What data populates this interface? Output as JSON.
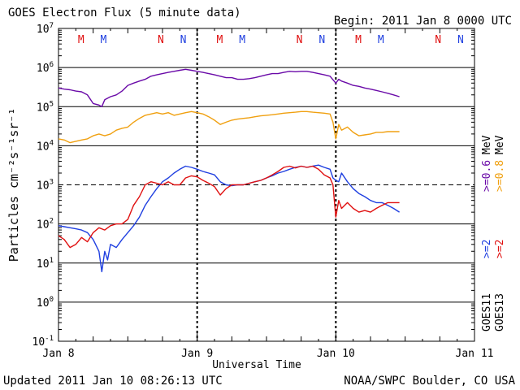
{
  "header": {
    "title": "GOES Electron Flux (5 minute data)",
    "begin": "Begin: 2011 Jan 8 0000 UTC"
  },
  "footer": {
    "updated": "Updated 2011 Jan 10 08:26:13 UTC",
    "credit": "NOAA/SWPC Boulder, CO USA"
  },
  "colors": {
    "goes11_2mev": "#1f3fe0",
    "goes13_2mev": "#e01010",
    "goes11_06mev": "#6a0aa8",
    "goes13_08mev": "#f0a010",
    "marker_m": "#e01010",
    "marker_n": "#1f3fe0"
  },
  "chart_data": {
    "type": "line",
    "title": "GOES Electron Flux (5 minute data)",
    "xlabel": "Universal Time",
    "ylabel": "Particles cm⁻²s⁻¹sr⁻¹",
    "y_scale": "log",
    "ylim": [
      0.1,
      10000000
    ],
    "y_ticks": [
      {
        "exp": -1
      },
      {
        "exp": 0
      },
      {
        "exp": 1
      },
      {
        "exp": 2
      },
      {
        "exp": 3
      },
      {
        "exp": 4
      },
      {
        "exp": 5
      },
      {
        "exp": 6
      },
      {
        "exp": 7
      }
    ],
    "xlim_hours": [
      0,
      72
    ],
    "x_ticks": [
      {
        "label": "Jan 8",
        "hour": 0
      },
      {
        "label": "Jan 9",
        "hour": 24
      },
      {
        "label": "Jan 10",
        "hour": 48
      },
      {
        "label": "Jan 11",
        "hour": 72
      }
    ],
    "dashed_day_lines_hours": [
      24,
      48
    ],
    "dashed_reference_level": 1000,
    "markers": [
      {
        "label": "M",
        "hour": 3.9,
        "color": "#e01010"
      },
      {
        "label": "M",
        "hour": 7.8,
        "color": "#1f3fe0"
      },
      {
        "label": "N",
        "hour": 17.7,
        "color": "#e01010"
      },
      {
        "label": "N",
        "hour": 21.6,
        "color": "#1f3fe0"
      },
      {
        "label": "M",
        "hour": 27.9,
        "color": "#e01010"
      },
      {
        "label": "M",
        "hour": 31.8,
        "color": "#1f3fe0"
      },
      {
        "label": "N",
        "hour": 41.7,
        "color": "#e01010"
      },
      {
        "label": "N",
        "hour": 45.6,
        "color": "#1f3fe0"
      },
      {
        "label": "M",
        "hour": 51.9,
        "color": "#e01010"
      },
      {
        "label": "M",
        "hour": 55.8,
        "color": "#1f3fe0"
      },
      {
        "label": "N",
        "hour": 65.7,
        "color": "#e01010"
      },
      {
        "label": "N",
        "hour": 69.6,
        "color": "#1f3fe0"
      }
    ],
    "legend": {
      "placement": "right",
      "energy_labels": [
        {
          "text": ">=2",
          "color": "#1f3fe0"
        },
        {
          "text": ">=2",
          "color": "#e01010"
        },
        {
          "text": ">=0.6",
          "color": "#6a0aa8"
        },
        {
          "text": ">=0.8",
          "color": "#f0a010"
        }
      ],
      "unit": "MeV",
      "satellites": [
        "GOES11",
        "GOES13"
      ]
    },
    "series": [
      {
        "name": "GOES11 >=2 MeV",
        "color": "#1f3fe0",
        "x": [
          0,
          1,
          2,
          3,
          4,
          5,
          6,
          7,
          7.5,
          8,
          8.5,
          9,
          10,
          11,
          12,
          13,
          14,
          15,
          16,
          17,
          18,
          19,
          20,
          21,
          22,
          23,
          24,
          25,
          26,
          27,
          28,
          29,
          30,
          31,
          32,
          33,
          34,
          35,
          36,
          37,
          38,
          39,
          40,
          41,
          42,
          43,
          44,
          45,
          46,
          47,
          47.5,
          48,
          48.5,
          49,
          50,
          51,
          52,
          53,
          54,
          55,
          56,
          57,
          58,
          59
        ],
        "y": [
          90,
          85,
          80,
          75,
          70,
          60,
          40,
          20,
          6,
          20,
          12,
          30,
          25,
          40,
          60,
          90,
          150,
          300,
          500,
          800,
          1200,
          1500,
          2000,
          2500,
          3000,
          2800,
          2500,
          2200,
          2000,
          1800,
          1200,
          1000,
          950,
          1000,
          1000,
          1100,
          1200,
          1300,
          1500,
          1700,
          2000,
          2200,
          2500,
          2800,
          3000,
          2800,
          3000,
          3200,
          2800,
          2500,
          1500,
          1300,
          1200,
          2000,
          1200,
          800,
          600,
          500,
          400,
          350,
          350,
          300,
          250,
          200
        ]
      },
      {
        "name": "GOES13 >=2 MeV",
        "color": "#e01010",
        "x": [
          0,
          1,
          2,
          3,
          4,
          5,
          6,
          7,
          8,
          9,
          10,
          11,
          12,
          13,
          14,
          15,
          16,
          17,
          18,
          19,
          20,
          21,
          22,
          23,
          24,
          25,
          26,
          27,
          28,
          29,
          30,
          31,
          32,
          33,
          34,
          35,
          36,
          37,
          38,
          39,
          40,
          41,
          42,
          43,
          44,
          45,
          46,
          47,
          47.5,
          48,
          48.5,
          49,
          50,
          51,
          52,
          53,
          54,
          55,
          56,
          57,
          58,
          59
        ],
        "y": [
          50,
          40,
          25,
          30,
          45,
          35,
          60,
          80,
          70,
          90,
          100,
          100,
          130,
          300,
          500,
          1000,
          1200,
          1100,
          1000,
          1200,
          1000,
          1000,
          1500,
          1700,
          1600,
          1300,
          1100,
          900,
          550,
          800,
          1000,
          1000,
          1000,
          1100,
          1200,
          1300,
          1500,
          1800,
          2200,
          2800,
          3000,
          2700,
          3000,
          2800,
          3000,
          2500,
          1800,
          1500,
          1000,
          150,
          400,
          250,
          350,
          250,
          200,
          220,
          200,
          250,
          300,
          350,
          350,
          350
        ]
      },
      {
        "name": "GOES11 >=0.6 MeV",
        "color": "#6a0aa8",
        "x": [
          0,
          1,
          2,
          3,
          4,
          5,
          6,
          7,
          7.5,
          8,
          9,
          10,
          11,
          12,
          13,
          14,
          15,
          16,
          17,
          18,
          19,
          20,
          21,
          22,
          23,
          24,
          25,
          26,
          27,
          28,
          29,
          30,
          31,
          32,
          33,
          34,
          35,
          36,
          37,
          38,
          39,
          40,
          41,
          42,
          43,
          44,
          45,
          46,
          47,
          48,
          48.5,
          49,
          50,
          51,
          52,
          53,
          54,
          55,
          56,
          57,
          58,
          59
        ],
        "y": [
          300000,
          280000,
          270000,
          250000,
          240000,
          200000,
          120000,
          110000,
          100000,
          150000,
          180000,
          200000,
          250000,
          350000,
          400000,
          450000,
          500000,
          600000,
          650000,
          700000,
          750000,
          800000,
          850000,
          900000,
          850000,
          800000,
          750000,
          700000,
          650000,
          600000,
          550000,
          550000,
          500000,
          500000,
          520000,
          550000,
          600000,
          650000,
          700000,
          700000,
          750000,
          800000,
          780000,
          800000,
          800000,
          750000,
          700000,
          650000,
          600000,
          400000,
          500000,
          450000,
          400000,
          350000,
          330000,
          300000,
          280000,
          260000,
          240000,
          220000,
          200000,
          180000
        ]
      },
      {
        "name": "GOES13 >=0.8 MeV",
        "color": "#f0a010",
        "x": [
          0,
          1,
          2,
          3,
          4,
          5,
          6,
          7,
          8,
          9,
          10,
          11,
          12,
          13,
          14,
          15,
          16,
          17,
          18,
          19,
          20,
          21,
          22,
          23,
          24,
          25,
          26,
          27,
          28,
          29,
          30,
          31,
          32,
          33,
          34,
          35,
          36,
          37,
          38,
          39,
          40,
          41,
          42,
          43,
          44,
          45,
          46,
          47,
          47.5,
          48,
          48.5,
          49,
          50,
          51,
          52,
          53,
          54,
          55,
          56,
          57,
          58,
          59
        ],
        "y": [
          15000,
          14000,
          12000,
          13000,
          14000,
          15000,
          18000,
          20000,
          18000,
          20000,
          25000,
          28000,
          30000,
          40000,
          50000,
          60000,
          65000,
          70000,
          65000,
          70000,
          60000,
          65000,
          70000,
          75000,
          70000,
          65000,
          55000,
          45000,
          35000,
          40000,
          45000,
          48000,
          50000,
          52000,
          55000,
          58000,
          60000,
          62000,
          65000,
          68000,
          70000,
          72000,
          75000,
          75000,
          72000,
          70000,
          68000,
          65000,
          40000,
          15000,
          35000,
          25000,
          30000,
          22000,
          18000,
          19000,
          20000,
          22000,
          22000,
          23000,
          23000,
          23000
        ]
      }
    ]
  }
}
